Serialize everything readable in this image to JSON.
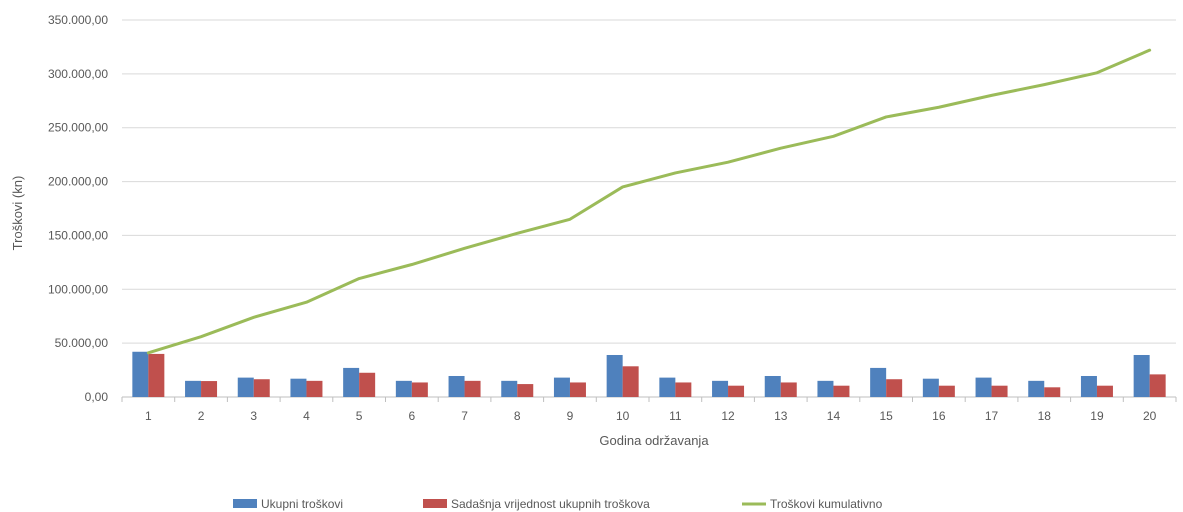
{
  "chart_data": {
    "type": "bar",
    "title": "",
    "xlabel": "Godina održavanja",
    "ylabel": "Troškovi (kn)",
    "ylim": [
      0,
      350000
    ],
    "yticks": [
      0,
      50000,
      100000,
      150000,
      200000,
      250000,
      300000,
      350000
    ],
    "ytick_labels": [
      "0,00",
      "50.000,00",
      "100.000,00",
      "150.000,00",
      "200.000,00",
      "250.000,00",
      "300.000,00",
      "350.000,00"
    ],
    "grid": true,
    "legend_position": "bottom",
    "categories": [
      "1",
      "2",
      "3",
      "4",
      "5",
      "6",
      "7",
      "8",
      "9",
      "10",
      "11",
      "12",
      "13",
      "14",
      "15",
      "16",
      "17",
      "18",
      "19",
      "20"
    ],
    "series": [
      {
        "name": "Ukupni troškovi",
        "kind": "bar",
        "color": "#4F81BD",
        "values": [
          42000,
          15000,
          18000,
          17000,
          27000,
          15000,
          19500,
          15000,
          18000,
          39000,
          18000,
          15000,
          19500,
          15000,
          27000,
          17000,
          18000,
          15000,
          19500,
          39000
        ]
      },
      {
        "name": "Sadašnja vrijednost ukupnih troškova",
        "kind": "bar",
        "color": "#C0504D",
        "values": [
          40000,
          14800,
          16500,
          15000,
          22500,
          13500,
          15000,
          12000,
          13500,
          28500,
          13500,
          10500,
          13500,
          10500,
          16500,
          10500,
          10500,
          9000,
          10500,
          21000
        ]
      },
      {
        "name": "Troškovi kumulativno",
        "kind": "line",
        "color": "#9BBB59",
        "values": [
          41000,
          56000,
          74000,
          88000,
          110000,
          123000,
          138000,
          152000,
          165000,
          195000,
          208000,
          218000,
          231000,
          242000,
          260000,
          269000,
          280000,
          290000,
          301000,
          322000
        ]
      }
    ]
  }
}
